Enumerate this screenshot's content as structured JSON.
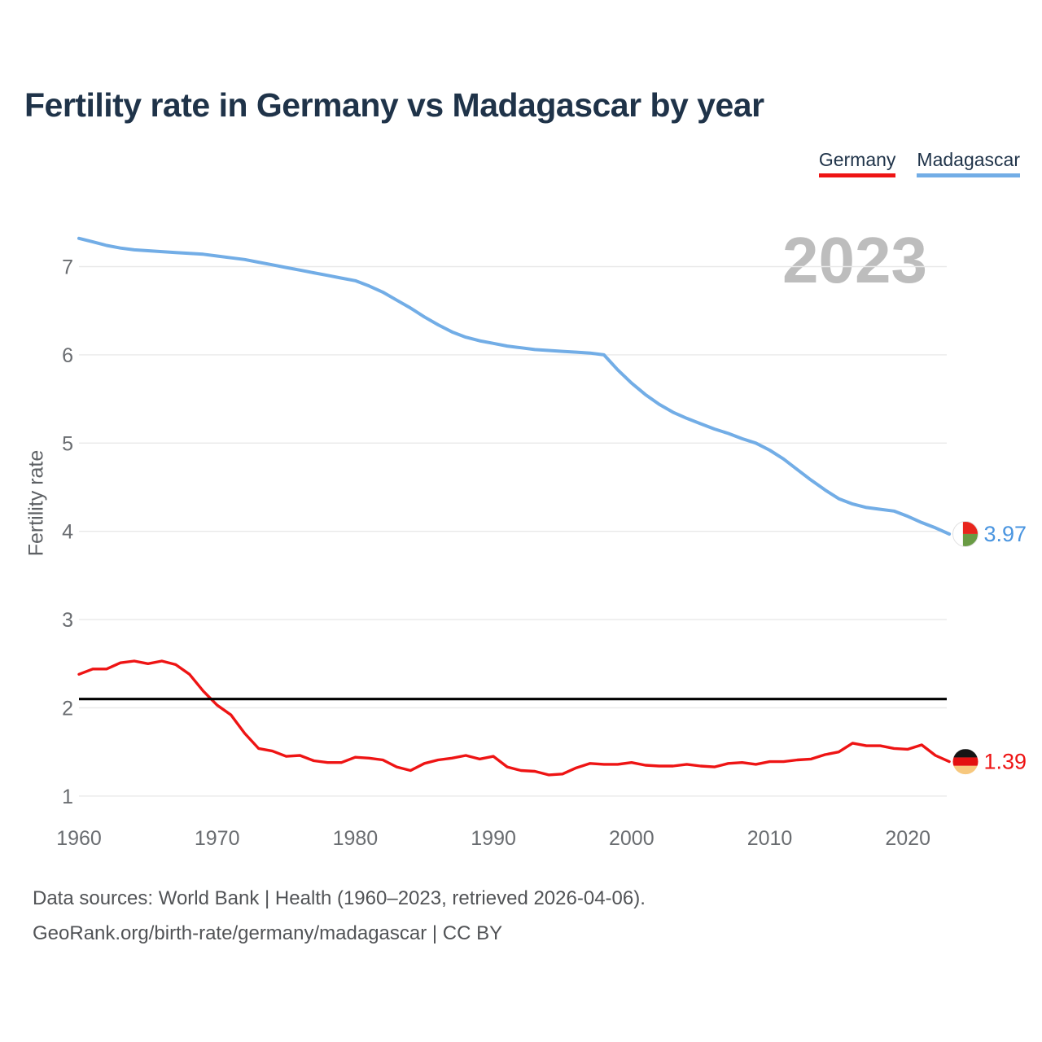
{
  "title": "Fertility rate in Germany vs Madagascar by year",
  "watermark": "2023",
  "legend": {
    "items": [
      {
        "label": "Germany",
        "color": "#ee1414"
      },
      {
        "label": "Madagascar",
        "color": "#72ade6"
      }
    ]
  },
  "y_axis": {
    "label": "Fertility rate",
    "ticks": [
      7,
      6,
      5,
      4,
      3,
      2,
      1
    ]
  },
  "x_axis": {
    "ticks": [
      1960,
      1970,
      1980,
      1990,
      2000,
      2010,
      2020
    ]
  },
  "reference_line": {
    "value": 2.1,
    "color": "#000000"
  },
  "end_labels": [
    {
      "series": "Madagascar",
      "text": "3.97",
      "color": "#4a95e0",
      "flag": "madagascar-flag-icon"
    },
    {
      "series": "Germany",
      "text": "1.39",
      "color": "#ee1414",
      "flag": "germany-flag-icon"
    }
  ],
  "footer": {
    "line1": "Data sources: World Bank | Health (1960–2023, retrieved 2026-04-06).",
    "line2": "GeoRank.org/birth-rate/germany/madagascar | CC BY"
  },
  "flag_colors": {
    "germany": {
      "black": "#151515",
      "red": "#e31111",
      "gold": "#f7c87e"
    },
    "madagascar": {
      "white": "#ffffff",
      "red": "#e8251d",
      "green": "#699b44"
    }
  },
  "chart_data": {
    "type": "line",
    "title": "Fertility rate in Germany vs Madagascar by year",
    "xlabel": "",
    "ylabel": "Fertility rate",
    "ylim": [
      0.9,
      7.45
    ],
    "yticks": [
      1,
      2,
      3,
      4,
      5,
      6,
      7
    ],
    "xticks": [
      1960,
      1970,
      1980,
      1990,
      2000,
      2010,
      2020
    ],
    "grid": true,
    "legend_position": "top-right",
    "annotations": {
      "watermark": "2023",
      "replacement_rate_line": 2.1
    },
    "x": [
      1960,
      1961,
      1962,
      1963,
      1964,
      1965,
      1966,
      1967,
      1968,
      1969,
      1970,
      1971,
      1972,
      1973,
      1974,
      1975,
      1976,
      1977,
      1978,
      1979,
      1980,
      1981,
      1982,
      1983,
      1984,
      1985,
      1986,
      1987,
      1988,
      1989,
      1990,
      1991,
      1992,
      1993,
      1994,
      1995,
      1996,
      1997,
      1998,
      1999,
      2000,
      2001,
      2002,
      2003,
      2004,
      2005,
      2006,
      2007,
      2008,
      2009,
      2010,
      2011,
      2012,
      2013,
      2014,
      2015,
      2016,
      2017,
      2018,
      2019,
      2020,
      2021,
      2022,
      2023
    ],
    "series": [
      {
        "name": "Madagascar",
        "color": "#72ade6",
        "end_value": 3.97,
        "values": [
          7.32,
          7.28,
          7.24,
          7.21,
          7.19,
          7.18,
          7.17,
          7.16,
          7.15,
          7.14,
          7.12,
          7.1,
          7.08,
          7.05,
          7.02,
          6.99,
          6.96,
          6.93,
          6.9,
          6.87,
          6.84,
          6.78,
          6.71,
          6.62,
          6.53,
          6.43,
          6.34,
          6.26,
          6.2,
          6.16,
          6.13,
          6.1,
          6.08,
          6.06,
          6.05,
          6.04,
          6.03,
          6.02,
          6.0,
          5.83,
          5.68,
          5.55,
          5.44,
          5.35,
          5.28,
          5.22,
          5.16,
          5.11,
          5.05,
          5.0,
          4.92,
          4.82,
          4.7,
          4.58,
          4.47,
          4.37,
          4.31,
          4.27,
          4.25,
          4.23,
          4.17,
          4.1,
          4.04,
          3.97
        ]
      },
      {
        "name": "Germany",
        "color": "#ee1414",
        "end_value": 1.39,
        "values": [
          2.38,
          2.44,
          2.44,
          2.51,
          2.53,
          2.5,
          2.53,
          2.49,
          2.38,
          2.19,
          2.03,
          1.92,
          1.71,
          1.54,
          1.51,
          1.45,
          1.46,
          1.4,
          1.38,
          1.38,
          1.44,
          1.43,
          1.41,
          1.33,
          1.29,
          1.37,
          1.41,
          1.43,
          1.46,
          1.42,
          1.45,
          1.33,
          1.29,
          1.28,
          1.24,
          1.25,
          1.32,
          1.37,
          1.36,
          1.36,
          1.38,
          1.35,
          1.34,
          1.34,
          1.36,
          1.34,
          1.33,
          1.37,
          1.38,
          1.36,
          1.39,
          1.39,
          1.41,
          1.42,
          1.47,
          1.5,
          1.6,
          1.57,
          1.57,
          1.54,
          1.53,
          1.58,
          1.46,
          1.39
        ]
      }
    ]
  }
}
